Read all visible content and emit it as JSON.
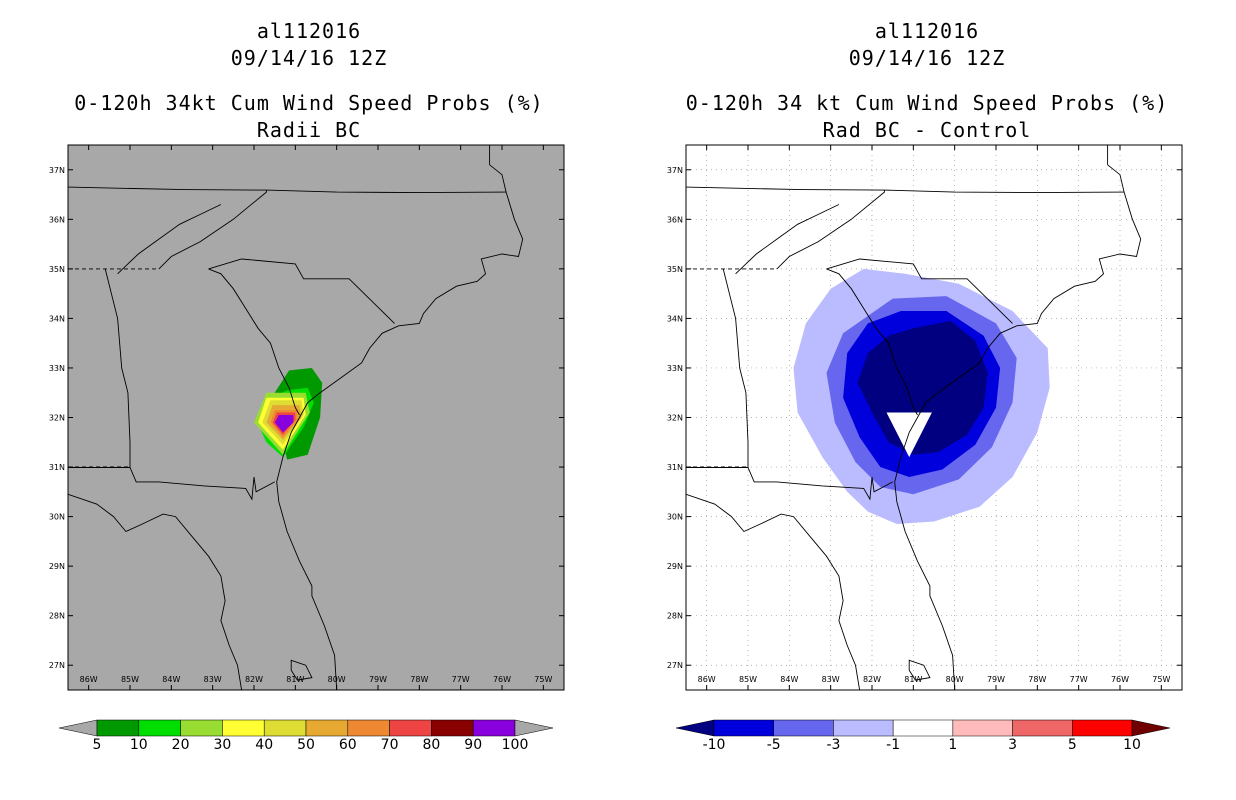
{
  "left": {
    "title_lines": [
      "al112016",
      "09/14/16 12Z",
      "0-120h 34kt Cum Wind Speed Probs (%)",
      "Radii BC"
    ],
    "colorbar": {
      "colors": [
        "#009a00",
        "#00dd00",
        "#99dd33",
        "#ffff33",
        "#dddd33",
        "#e6aa33",
        "#ee8833",
        "#ee4444",
        "#880000",
        "#8800dd"
      ],
      "under_color": "#a8a8a8",
      "over_color": "#a8a8a8",
      "labels": [
        "5",
        "10",
        "20",
        "30",
        "40",
        "50",
        "60",
        "70",
        "80",
        "90",
        "100"
      ]
    }
  },
  "right": {
    "title_lines": [
      "al112016",
      "09/14/16 12Z",
      "0-120h 34 kt Cum Wind Speed Probs (%)",
      "Rad BC - Control"
    ],
    "colorbar": {
      "colors": [
        "#0000dd",
        "#6666ee",
        "#bbbbff",
        "#ffffff",
        "#ffbbbb",
        "#ee6666",
        "#ff0000"
      ],
      "under_color": "#000080",
      "over_color": "#700000",
      "labels": [
        "-10",
        "-5",
        "-3",
        "-1",
        "1",
        "3",
        "5",
        "10"
      ]
    }
  },
  "map": {
    "lon_labels": [
      "86W",
      "85W",
      "84W",
      "83W",
      "82W",
      "81W",
      "80W",
      "79W",
      "78W",
      "77W",
      "76W",
      "75W"
    ],
    "lat_labels": [
      "37N",
      "36N",
      "35N",
      "34N",
      "33N",
      "32N",
      "31N",
      "30N",
      "29N",
      "28N",
      "27N"
    ],
    "background_left": "#a8a8a8",
    "background_right": "#ffffff"
  }
}
